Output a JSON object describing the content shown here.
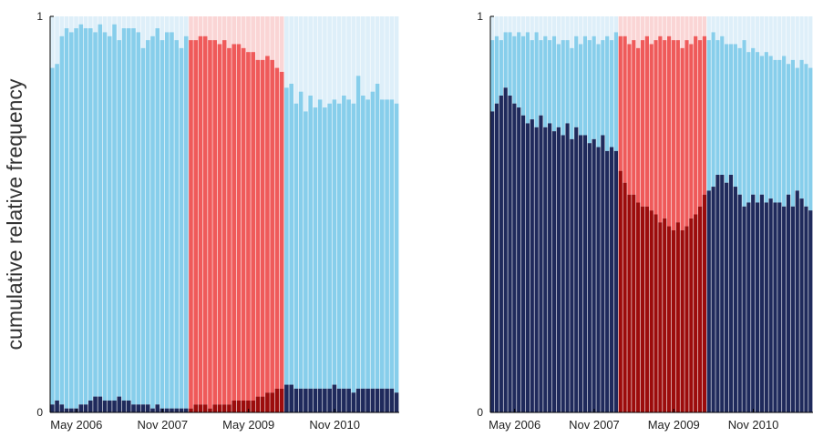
{
  "chart_data": [
    {
      "type": "bar",
      "stacked": true,
      "ylabel": "cumulative relative frequency",
      "ylim": [
        0,
        1
      ],
      "yticks": [
        0,
        1
      ],
      "xticks": [
        "May 2006",
        "Nov 2007",
        "May 2009",
        "Nov 2010"
      ],
      "n_months": 73,
      "regimes": [
        {
          "start": 0,
          "end": 29,
          "bottom": "#1f2a5c",
          "middle": "#87ceeb",
          "top": "#deeff9"
        },
        {
          "start": 29,
          "end": 49,
          "bottom": "#9c0c0c",
          "middle": "#ef5a5a",
          "top": "#fad5d5"
        },
        {
          "start": 49,
          "end": 73,
          "bottom": "#1f2a5c",
          "middle": "#87ceeb",
          "top": "#deeff9"
        }
      ],
      "lower": [
        0.02,
        0.03,
        0.02,
        0.01,
        0.01,
        0.01,
        0.02,
        0.02,
        0.03,
        0.04,
        0.04,
        0.03,
        0.03,
        0.03,
        0.04,
        0.03,
        0.03,
        0.02,
        0.02,
        0.02,
        0.02,
        0.01,
        0.02,
        0.01,
        0.01,
        0.01,
        0.01,
        0.01,
        0.01,
        0.01,
        0.02,
        0.02,
        0.02,
        0.01,
        0.02,
        0.02,
        0.02,
        0.02,
        0.03,
        0.03,
        0.03,
        0.03,
        0.03,
        0.04,
        0.04,
        0.05,
        0.05,
        0.06,
        0.06,
        0.07,
        0.07,
        0.06,
        0.06,
        0.06,
        0.06,
        0.06,
        0.06,
        0.06,
        0.06,
        0.07,
        0.06,
        0.06,
        0.06,
        0.05,
        0.06,
        0.06,
        0.06,
        0.06,
        0.06,
        0.06,
        0.06,
        0.06,
        0.05
      ],
      "upper": [
        0.87,
        0.88,
        0.95,
        0.97,
        0.96,
        0.97,
        0.98,
        0.97,
        0.97,
        0.96,
        0.98,
        0.96,
        0.95,
        0.98,
        0.94,
        0.97,
        0.97,
        0.97,
        0.96,
        0.92,
        0.94,
        0.95,
        0.97,
        0.94,
        0.96,
        0.96,
        0.94,
        0.92,
        0.95,
        0.94,
        0.94,
        0.95,
        0.95,
        0.94,
        0.94,
        0.93,
        0.94,
        0.92,
        0.93,
        0.93,
        0.92,
        0.91,
        0.91,
        0.89,
        0.89,
        0.9,
        0.89,
        0.87,
        0.86,
        0.82,
        0.83,
        0.78,
        0.81,
        0.76,
        0.8,
        0.77,
        0.79,
        0.77,
        0.78,
        0.79,
        0.78,
        0.8,
        0.79,
        0.78,
        0.85,
        0.8,
        0.79,
        0.81,
        0.83,
        0.79,
        0.79,
        0.79,
        0.78
      ]
    },
    {
      "type": "bar",
      "stacked": true,
      "ylim": [
        0,
        1
      ],
      "yticks": [
        0,
        1
      ],
      "xticks": [
        "May 2006",
        "Nov 2007",
        "May 2009",
        "Nov 2010"
      ],
      "n_months": 73,
      "regimes": [
        {
          "start": 0,
          "end": 29,
          "bottom": "#1f2a5c",
          "middle": "#87ceeb",
          "top": "#deeff9"
        },
        {
          "start": 29,
          "end": 49,
          "bottom": "#9c0c0c",
          "middle": "#ef5a5a",
          "top": "#fad5d5"
        },
        {
          "start": 49,
          "end": 73,
          "bottom": "#1f2a5c",
          "middle": "#87ceeb",
          "top": "#deeff9"
        }
      ],
      "lower": [
        0.76,
        0.78,
        0.8,
        0.82,
        0.8,
        0.78,
        0.77,
        0.75,
        0.73,
        0.74,
        0.72,
        0.75,
        0.72,
        0.73,
        0.71,
        0.72,
        0.7,
        0.73,
        0.69,
        0.72,
        0.7,
        0.7,
        0.68,
        0.69,
        0.67,
        0.7,
        0.66,
        0.67,
        0.66,
        0.61,
        0.58,
        0.55,
        0.55,
        0.53,
        0.52,
        0.52,
        0.51,
        0.5,
        0.48,
        0.49,
        0.47,
        0.46,
        0.48,
        0.46,
        0.47,
        0.49,
        0.5,
        0.52,
        0.55,
        0.56,
        0.57,
        0.6,
        0.6,
        0.58,
        0.6,
        0.57,
        0.55,
        0.52,
        0.53,
        0.55,
        0.53,
        0.55,
        0.53,
        0.54,
        0.53,
        0.53,
        0.52,
        0.55,
        0.52,
        0.56,
        0.54,
        0.52,
        0.51
      ],
      "upper": [
        0.94,
        0.95,
        0.94,
        0.96,
        0.96,
        0.95,
        0.96,
        0.95,
        0.96,
        0.94,
        0.96,
        0.94,
        0.95,
        0.94,
        0.95,
        0.93,
        0.94,
        0.94,
        0.92,
        0.95,
        0.93,
        0.95,
        0.94,
        0.95,
        0.93,
        0.94,
        0.95,
        0.94,
        0.96,
        0.95,
        0.95,
        0.93,
        0.94,
        0.92,
        0.94,
        0.95,
        0.93,
        0.94,
        0.95,
        0.94,
        0.95,
        0.94,
        0.94,
        0.92,
        0.94,
        0.93,
        0.95,
        0.94,
        0.95,
        0.94,
        0.96,
        0.94,
        0.95,
        0.93,
        0.93,
        0.93,
        0.92,
        0.94,
        0.91,
        0.92,
        0.91,
        0.9,
        0.91,
        0.9,
        0.89,
        0.89,
        0.9,
        0.88,
        0.89,
        0.87,
        0.89,
        0.88,
        0.87
      ]
    }
  ]
}
